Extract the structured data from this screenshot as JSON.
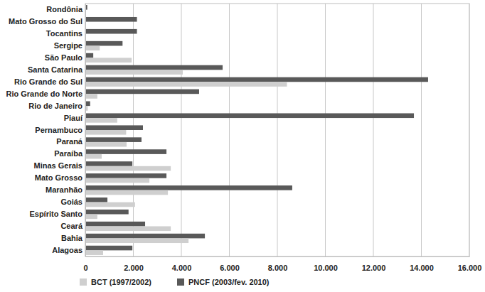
{
  "chart_data": {
    "type": "bar",
    "orientation": "horizontal",
    "categories": [
      "Rondônia",
      "Mato Grosso do Sul",
      "Tocantins",
      "Sergipe",
      "São Paulo",
      "Santa Catarina",
      "Rio Grande do Sul",
      "Rio Grande do Norte",
      "Rio de Janeiro",
      "Piauí",
      "Pernambuco",
      "Paraná",
      "Paraíba",
      "Minas Gerais",
      "Mato Grosso",
      "Maranhão",
      "Goiás",
      "Espírito Santo",
      "Ceará",
      "Bahia",
      "Alagoas"
    ],
    "series": [
      {
        "name": "PNCF (2003/fev. 2010)",
        "color": "#595959",
        "values": [
          80,
          2150,
          2150,
          1550,
          330,
          5720,
          14280,
          4740,
          200,
          13690,
          2400,
          2340,
          3380,
          1960,
          3380,
          8620,
          920,
          1800,
          2490,
          4980,
          1960
        ]
      },
      {
        "name": "BCT (1997/2002)",
        "color": "#cfcfcf",
        "values": [
          0,
          0,
          0,
          600,
          1930,
          4060,
          8400,
          500,
          100,
          1330,
          1700,
          1720,
          680,
          3560,
          2670,
          3440,
          2070,
          500,
          3560,
          4300,
          740
        ]
      }
    ],
    "xlim": [
      0,
      16000
    ],
    "xticks": [
      0,
      {
        "value": 2000,
        "label": "2.000"
      },
      {
        "value": 4000,
        "label": "4.000"
      },
      {
        "value": 6000,
        "label": "6.000"
      },
      {
        "value": 8000,
        "label": "8.000"
      },
      {
        "value": 10000,
        "label": "10.000"
      },
      {
        "value": 12000,
        "label": "12.000"
      },
      {
        "value": 14000,
        "label": "14.000"
      },
      {
        "value": 16000,
        "label": "16.000"
      }
    ],
    "grid": true,
    "legend": "bottom"
  }
}
